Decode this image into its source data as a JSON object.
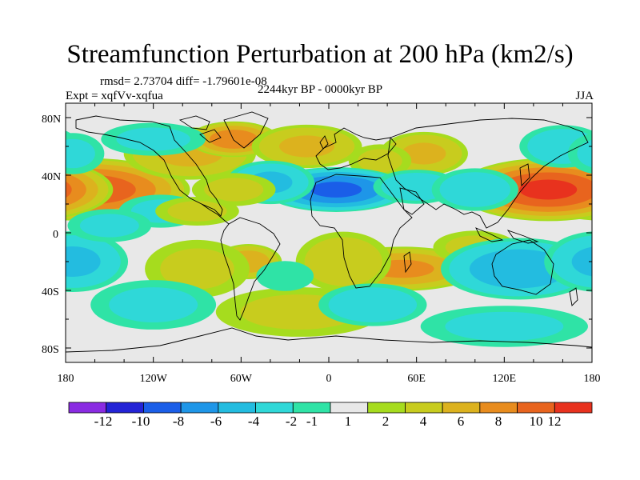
{
  "title": "Streamfunction Perturbation at 200 hPa (km2/s)",
  "stats": "rmsd= 2.73704 diff= -1.79601e-08",
  "experiment": "Expt = xqfVv-xqfua",
  "period": "2244kyr BP - 0000kyr BP",
  "season": "JJA",
  "axes": {
    "y_ticks": [
      "80N",
      "40N",
      "0",
      "40S",
      "80S"
    ],
    "x_ticks": [
      "180",
      "120W",
      "60W",
      "0",
      "60E",
      "120E",
      "180"
    ]
  },
  "colorbar": {
    "colors": [
      "#8a2be2",
      "#2323d6",
      "#1a5ee8",
      "#1e96e8",
      "#23bce0",
      "#2fd8d8",
      "#2fe3a6",
      "#e8e8e8",
      "#a6dc1e",
      "#c8cc1e",
      "#dcb21e",
      "#e88c1e",
      "#e8641e",
      "#e8321e"
    ],
    "labels": [
      "-12",
      "-10",
      "-8",
      "-6",
      "-4",
      "-2",
      "-1",
      "1",
      "2",
      "4",
      "6",
      "8",
      "10",
      "12"
    ]
  },
  "map": {
    "projection": "cylindrical-equidistant",
    "features": [
      {
        "lon": -165,
        "lat": 30,
        "value": 9,
        "sx": 45,
        "sy": 14
      },
      {
        "lon": 150,
        "lat": 30,
        "value": 10,
        "sx": 40,
        "sy": 14
      },
      {
        "lon": -95,
        "lat": 55,
        "value": 4,
        "sx": 30,
        "sy": 12
      },
      {
        "lon": -65,
        "lat": 65,
        "value": 7,
        "sx": 20,
        "sy": 8
      },
      {
        "lon": -15,
        "lat": 60,
        "value": 4,
        "sx": 25,
        "sy": 10
      },
      {
        "lon": 65,
        "lat": 55,
        "value": 4,
        "sx": 20,
        "sy": 10
      },
      {
        "lon": 35,
        "lat": 50,
        "value": 2,
        "sx": 15,
        "sy": 8
      },
      {
        "lon": 160,
        "lat": 60,
        "value": -3,
        "sx": 20,
        "sy": 10
      },
      {
        "lon": -120,
        "lat": 65,
        "value": -2,
        "sx": 25,
        "sy": 8
      },
      {
        "lon": -175,
        "lat": 55,
        "value": -2,
        "sx": 15,
        "sy": 10
      },
      {
        "lon": 5,
        "lat": 30,
        "value": -8,
        "sx": 32,
        "sy": 10
      },
      {
        "lon": 60,
        "lat": 32,
        "value": -3,
        "sx": 20,
        "sy": 8
      },
      {
        "lon": -40,
        "lat": 35,
        "value": -4,
        "sx": 20,
        "sy": 10
      },
      {
        "lon": -115,
        "lat": 15,
        "value": -2,
        "sx": 20,
        "sy": 8
      },
      {
        "lon": 100,
        "lat": 30,
        "value": -3,
        "sx": 20,
        "sy": 10
      },
      {
        "lon": -65,
        "lat": 30,
        "value": 2,
        "sx": 20,
        "sy": 8
      },
      {
        "lon": -90,
        "lat": 15,
        "value": 2,
        "sx": 20,
        "sy": 7
      },
      {
        "lon": 50,
        "lat": -25,
        "value": 6,
        "sx": 35,
        "sy": 10
      },
      {
        "lon": 10,
        "lat": -20,
        "value": 3,
        "sx": 22,
        "sy": 14
      },
      {
        "lon": -55,
        "lat": -20,
        "value": 5,
        "sx": 15,
        "sy": 8
      },
      {
        "lon": -90,
        "lat": -25,
        "value": 2,
        "sx": 25,
        "sy": 14
      },
      {
        "lon": -20,
        "lat": -55,
        "value": 2,
        "sx": 40,
        "sy": 12
      },
      {
        "lon": 100,
        "lat": -10,
        "value": 2,
        "sx": 20,
        "sy": 8
      },
      {
        "lon": 130,
        "lat": -25,
        "value": -5,
        "sx": 35,
        "sy": 14
      },
      {
        "lon": 30,
        "lat": -50,
        "value": -3,
        "sx": 25,
        "sy": 10
      },
      {
        "lon": -175,
        "lat": -20,
        "value": -4,
        "sx": 25,
        "sy": 14
      },
      {
        "lon": -120,
        "lat": -50,
        "value": -2,
        "sx": 30,
        "sy": 12
      },
      {
        "lon": -30,
        "lat": -30,
        "value": -1,
        "sx": 15,
        "sy": 8
      },
      {
        "lon": 120,
        "lat": -65,
        "value": -2,
        "sx": 40,
        "sy": 10
      },
      {
        "lon": -150,
        "lat": 5,
        "value": -2,
        "sx": 20,
        "sy": 8
      }
    ]
  }
}
